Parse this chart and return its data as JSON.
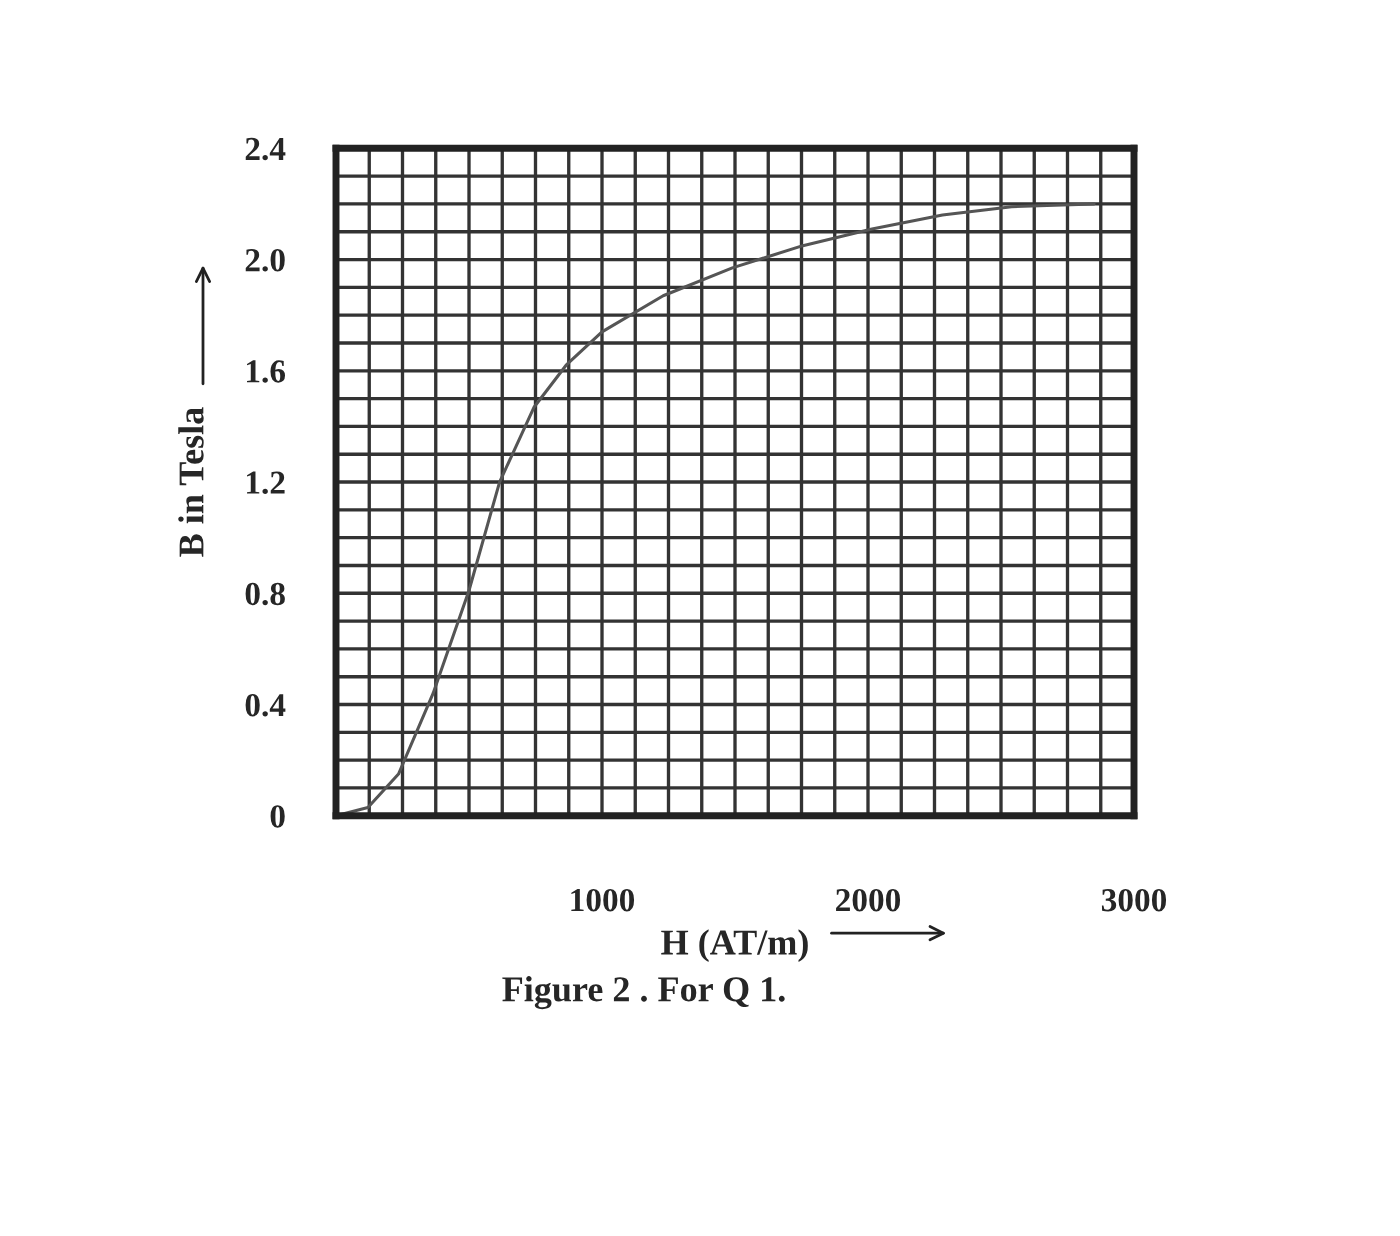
{
  "chart_data": {
    "type": "line",
    "xlabel": "H (AT/m)",
    "ylabel": "B in Tesla",
    "annotations": [
      "Figure 2 . For Q 1."
    ],
    "x": [
      0,
      120,
      235,
      365,
      500,
      615,
      745,
      865,
      1000,
      1230,
      1490,
      1755,
      2015,
      2280,
      2540,
      2850
    ],
    "series": [
      {
        "color": "#555555",
        "values": [
          0.0,
          0.03,
          0.15,
          0.44,
          0.81,
          1.2,
          1.47,
          1.62,
          1.74,
          1.87,
          1.97,
          2.05,
          2.11,
          2.16,
          2.19,
          2.2
        ]
      }
    ],
    "xlim": [
      0,
      3000
    ],
    "ylim": [
      0,
      2.4
    ],
    "xticks": [
      {
        "value": 0,
        "label": null
      },
      {
        "value": 125,
        "label": null
      },
      {
        "value": 250,
        "label": null
      },
      {
        "value": 375,
        "label": null
      },
      {
        "value": 500,
        "label": null
      },
      {
        "value": 625,
        "label": null
      },
      {
        "value": 750,
        "label": null
      },
      {
        "value": 875,
        "label": null
      },
      1000,
      {
        "value": 1125,
        "label": null
      },
      {
        "value": 1250,
        "label": null
      },
      {
        "value": 1375,
        "label": null
      },
      {
        "value": 1500,
        "label": null
      },
      {
        "value": 1625,
        "label": null
      },
      {
        "value": 1750,
        "label": null
      },
      {
        "value": 1875,
        "label": null
      },
      2000,
      {
        "value": 2125,
        "label": null
      },
      {
        "value": 2250,
        "label": null
      },
      {
        "value": 2375,
        "label": null
      },
      {
        "value": 2500,
        "label": null
      },
      {
        "value": 2625,
        "label": null
      },
      {
        "value": 2750,
        "label": null
      },
      {
        "value": 2875,
        "label": null
      },
      3000
    ],
    "yticks": [
      0,
      {
        "value": 0.1,
        "label": null
      },
      {
        "value": 0.2,
        "label": null
      },
      {
        "value": 0.3,
        "label": null
      },
      0.4,
      {
        "value": 0.5,
        "label": null
      },
      {
        "value": 0.6,
        "label": null
      },
      {
        "value": 0.7,
        "label": null
      },
      0.8,
      {
        "value": 0.9,
        "label": null
      },
      {
        "value": 1.0,
        "label": null
      },
      {
        "value": 1.1,
        "label": null
      },
      1.2,
      {
        "value": 1.3,
        "label": null
      },
      {
        "value": 1.4,
        "label": null
      },
      {
        "value": 1.5,
        "label": null
      },
      1.6,
      {
        "value": 1.7,
        "label": null
      },
      {
        "value": 1.8,
        "label": null
      },
      {
        "value": 1.9,
        "label": null
      },
      {
        "value": 2.0,
        "label": "2.0"
      },
      {
        "value": 2.1,
        "label": null
      },
      {
        "value": 2.2,
        "label": null
      },
      {
        "value": 2.3,
        "label": null
      },
      2.4
    ],
    "grid": true,
    "marker": "none",
    "line_style": "solid"
  }
}
